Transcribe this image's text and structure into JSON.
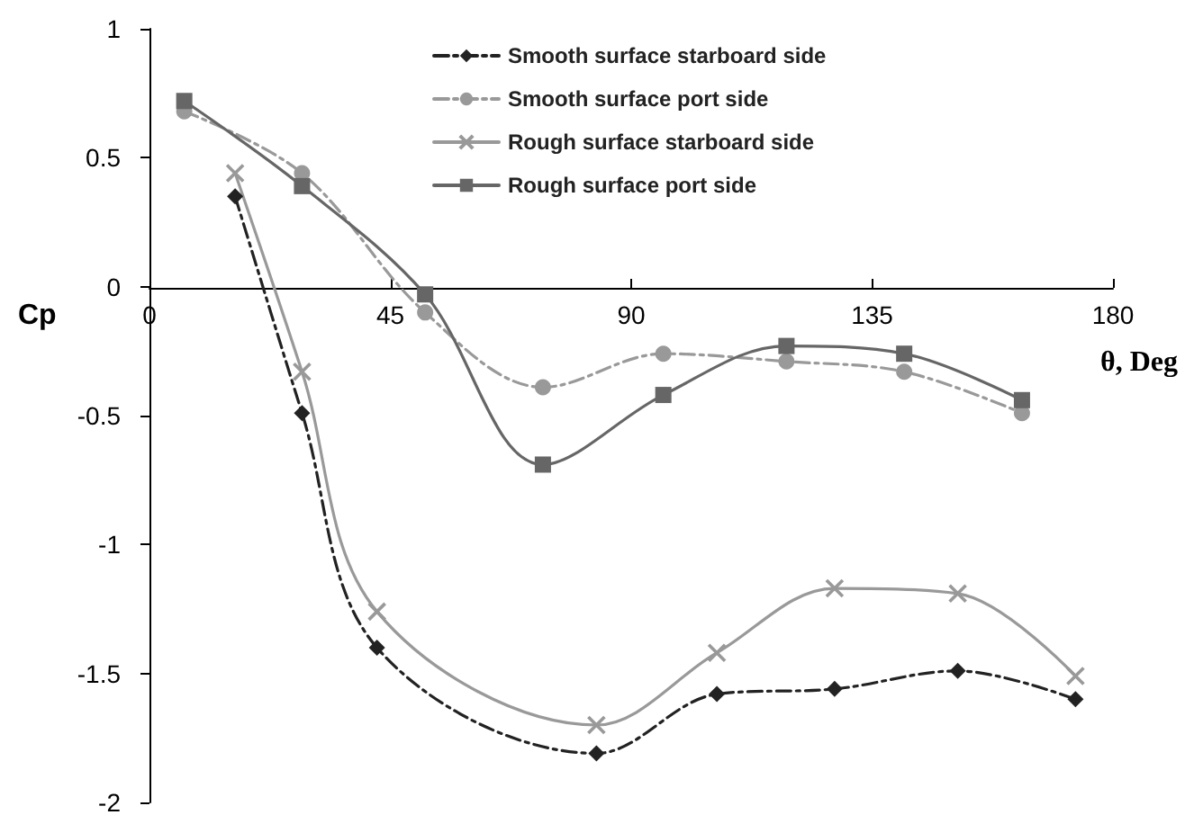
{
  "chart_data": {
    "type": "line",
    "xlabel": "θ, Deg",
    "ylabel": "Cp",
    "xlim": [
      0,
      180
    ],
    "xticks": [
      0,
      45,
      90,
      135,
      180
    ],
    "ylim": [
      -2,
      1
    ],
    "yticks": [
      -2,
      -1.5,
      -1,
      -0.5,
      0,
      0.5,
      1
    ],
    "grid": false,
    "legend": "top right",
    "series": [
      {
        "name": "Smooth surface starboard side",
        "color": "#222222",
        "marker": "diamond",
        "line_style": "dashed",
        "x": [
          16,
          28.5,
          42.5,
          83.5,
          106,
          128,
          151,
          173
        ],
        "values": [
          0.35,
          -0.49,
          -1.4,
          -1.81,
          -1.58,
          -1.56,
          -1.49,
          -1.6
        ]
      },
      {
        "name": "Smooth surface port side",
        "color": "#999999",
        "marker": "circle",
        "line_style": "dashed",
        "x": [
          6.5,
          28.5,
          51.5,
          73.5,
          96,
          119,
          141,
          163
        ],
        "values": [
          0.68,
          0.44,
          -0.1,
          -0.39,
          -0.26,
          -0.29,
          -0.33,
          -0.49
        ]
      },
      {
        "name": "Rough surface starboard side",
        "color": "#999999",
        "marker": "cross",
        "line_style": "solid",
        "x": [
          16,
          28.5,
          42.5,
          83.5,
          106,
          128,
          151,
          173
        ],
        "values": [
          0.44,
          -0.33,
          -1.26,
          -1.7,
          -1.42,
          -1.17,
          -1.19,
          -1.51
        ]
      },
      {
        "name": "Rough surface port side",
        "color": "#666666",
        "marker": "square",
        "line_style": "solid",
        "x": [
          6.5,
          28.5,
          51.5,
          73.5,
          96,
          119,
          141,
          163
        ],
        "values": [
          0.72,
          0.39,
          -0.03,
          -0.69,
          -0.42,
          -0.23,
          -0.26,
          -0.44
        ]
      }
    ]
  }
}
